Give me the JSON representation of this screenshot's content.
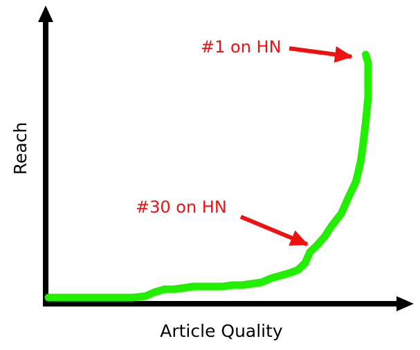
{
  "chart_data": {
    "type": "line",
    "title": "",
    "xlabel": "Article Quality",
    "ylabel": "Reach",
    "xticks": [],
    "yticks": [],
    "grid": false,
    "legend": "none",
    "colors": {
      "axis": "#000000",
      "curve": "#22ee00",
      "annotation": "#ee1111"
    },
    "series": [
      {
        "values": [
          [
            0,
            0
          ],
          [
            5,
            0
          ],
          [
            10,
            0
          ],
          [
            15,
            0
          ],
          [
            20,
            0
          ],
          [
            25,
            0
          ],
          [
            30,
            0
          ],
          [
            35,
            0
          ],
          [
            40,
            1
          ],
          [
            44,
            4
          ],
          [
            48,
            6
          ],
          [
            52,
            6
          ],
          [
            56,
            7
          ],
          [
            60,
            8
          ],
          [
            64,
            8
          ],
          [
            68,
            8
          ],
          [
            72,
            8
          ],
          [
            76,
            9
          ],
          [
            80,
            9
          ],
          [
            84,
            10
          ],
          [
            88,
            11
          ],
          [
            92,
            14
          ],
          [
            96,
            16
          ],
          [
            100,
            18
          ],
          [
            103,
            20
          ],
          [
            106,
            25
          ],
          [
            108,
            33
          ],
          [
            111,
            38
          ],
          [
            114,
            44
          ],
          [
            117,
            52
          ],
          [
            121,
            61
          ],
          [
            124,
            73
          ],
          [
            127,
            84
          ],
          [
            129,
            99
          ],
          [
            130,
            112
          ],
          [
            131,
            127
          ],
          [
            132,
            145
          ],
          [
            132,
            158
          ],
          [
            132,
            170
          ],
          [
            131,
            176
          ]
        ]
      }
    ],
    "annotations": [
      {
        "text": "#1 on HN",
        "target": [
          131,
          176
        ]
      },
      {
        "text": "#30 on HN",
        "target": [
          110,
          38
        ]
      }
    ]
  }
}
